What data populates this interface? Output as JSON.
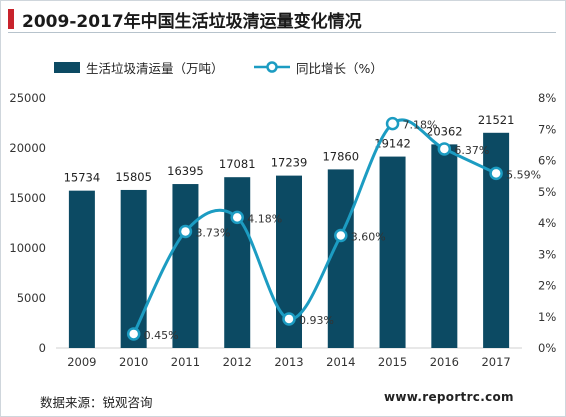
{
  "title": "2009-2017年中国生活垃圾清运量变化情况",
  "source": "数据来源：锐观咨询",
  "website": "www.reportrc.com",
  "colors": {
    "bar": "#0c4a63",
    "line": "#1c9cc2",
    "accent": "#c8232c"
  },
  "chart_data": {
    "type": "bar",
    "categories": [
      "2009",
      "2010",
      "2011",
      "2012",
      "2013",
      "2014",
      "2015",
      "2016",
      "2017"
    ],
    "series": [
      {
        "name": "生活垃圾清运量（万吨）",
        "type": "bar",
        "axis": "left",
        "values": [
          15734,
          15805,
          16395,
          17081,
          17239,
          17860,
          19142,
          20362,
          21521
        ],
        "labels": [
          "15734",
          "15805",
          "16395",
          "17081",
          "17239",
          "17860",
          "19142",
          "20362",
          "21521"
        ]
      },
      {
        "name": "同比增长（%）",
        "type": "line",
        "smooth": true,
        "axis": "right",
        "values": [
          null,
          0.45,
          3.73,
          4.18,
          0.93,
          3.6,
          7.18,
          6.37,
          5.59
        ],
        "labels": [
          "",
          "0.45%",
          "3.73%",
          "4.18%",
          "0.93%",
          "3.60%",
          "7.18%",
          "6.37%",
          "5.59%"
        ]
      }
    ],
    "ylim_left": [
      0,
      25000
    ],
    "yticks_left": [
      "0",
      "5000",
      "10000",
      "15000",
      "20000",
      "25000"
    ],
    "ylim_right": [
      0,
      8
    ],
    "yticks_right": [
      "0%",
      "1%",
      "2%",
      "3%",
      "4%",
      "5%",
      "6%",
      "7%",
      "8%"
    ],
    "legend_position": "top",
    "grid": false
  }
}
